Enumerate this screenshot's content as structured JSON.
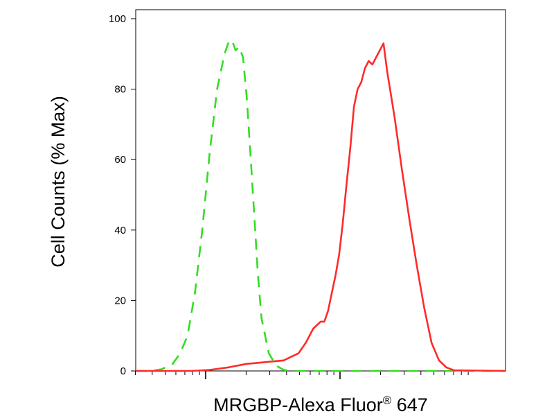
{
  "chart_data": {
    "type": "area",
    "title": "",
    "xlabel": "MRGBP-Alexa Fluor",
    "xlabel_superscript": "®",
    "xlabel_suffix": " 647",
    "ylabel": "Cell Counts (% Max)",
    "x_scale": "log",
    "ylim": [
      0,
      100
    ],
    "y_ticks": [
      "0",
      "20",
      "40",
      "60",
      "80",
      "100"
    ],
    "grid": false,
    "legend": "none",
    "series": [
      {
        "style": "dashed",
        "color": "#33dd22",
        "x": [
          0.0,
          0.04,
          0.07,
          0.1,
          0.12,
          0.14,
          0.16,
          0.18,
          0.2,
          0.22,
          0.24,
          0.25,
          0.26,
          0.27,
          0.28,
          0.29,
          0.3,
          0.31,
          0.32,
          0.33,
          0.34,
          0.36,
          0.38,
          0.4,
          0.42,
          0.44,
          0.5,
          1.0
        ],
        "y": [
          0,
          0,
          0.5,
          2,
          5,
          10,
          22,
          40,
          62,
          80,
          90,
          93,
          94,
          91,
          92,
          89,
          78,
          62,
          45,
          28,
          15,
          5,
          1.5,
          0.3,
          0,
          0,
          0,
          0
        ]
      },
      {
        "style": "solid",
        "color": "#ff2a2a",
        "x": [
          0.0,
          0.15,
          0.2,
          0.25,
          0.3,
          0.35,
          0.4,
          0.44,
          0.46,
          0.48,
          0.5,
          0.51,
          0.52,
          0.53,
          0.54,
          0.55,
          0.56,
          0.57,
          0.58,
          0.59,
          0.6,
          0.61,
          0.62,
          0.63,
          0.64,
          0.66,
          0.67,
          0.68,
          0.7,
          0.72,
          0.74,
          0.76,
          0.78,
          0.8,
          0.82,
          0.84,
          0.86,
          1.0
        ],
        "y": [
          0,
          0,
          0.3,
          1,
          2,
          2.5,
          3,
          5,
          8,
          12,
          14,
          14,
          17,
          22,
          27,
          33,
          42,
          53,
          63,
          75,
          80,
          82,
          86,
          88,
          87,
          91,
          93,
          85,
          72,
          57,
          43,
          30,
          18,
          8,
          3,
          1,
          0.2,
          0
        ]
      }
    ]
  }
}
